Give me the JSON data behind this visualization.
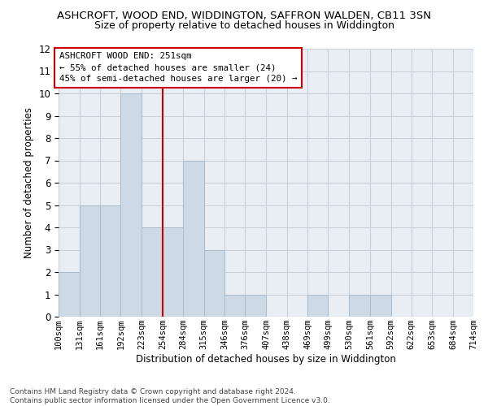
{
  "title": "ASHCROFT, WOOD END, WIDDINGTON, SAFFRON WALDEN, CB11 3SN",
  "subtitle": "Size of property relative to detached houses in Widdington",
  "xlabel": "Distribution of detached houses by size in Widdington",
  "ylabel": "Number of detached properties",
  "bin_labels": [
    "100sqm",
    "131sqm",
    "161sqm",
    "192sqm",
    "223sqm",
    "254sqm",
    "284sqm",
    "315sqm",
    "346sqm",
    "376sqm",
    "407sqm",
    "438sqm",
    "469sqm",
    "499sqm",
    "530sqm",
    "561sqm",
    "592sqm",
    "622sqm",
    "653sqm",
    "684sqm",
    "714sqm"
  ],
  "bin_edges": [
    100,
    131,
    161,
    192,
    223,
    254,
    284,
    315,
    346,
    376,
    407,
    438,
    469,
    499,
    530,
    561,
    592,
    622,
    653,
    684,
    714
  ],
  "bar_heights": [
    2,
    5,
    5,
    10,
    4,
    4,
    7,
    3,
    1,
    1,
    0,
    0,
    1,
    0,
    1,
    1,
    0,
    0,
    0,
    0
  ],
  "bar_color": "#cdd9e5",
  "bar_edgecolor": "#aabccc",
  "vline_x": 254,
  "vline_color": "#cc0000",
  "annotation_text": "ASHCROFT WOOD END: 251sqm\n← 55% of detached houses are smaller (24)\n45% of semi-detached houses are larger (20) →",
  "annotation_box_color": "#cc0000",
  "ylim": [
    0,
    12
  ],
  "yticks": [
    0,
    1,
    2,
    3,
    4,
    5,
    6,
    7,
    8,
    9,
    10,
    11,
    12
  ],
  "footer_text": "Contains HM Land Registry data © Crown copyright and database right 2024.\nContains public sector information licensed under the Open Government Licence v3.0.",
  "bg_color": "#ffffff",
  "plot_bg_color": "#e8eef4",
  "grid_color": "#c8d0dc"
}
